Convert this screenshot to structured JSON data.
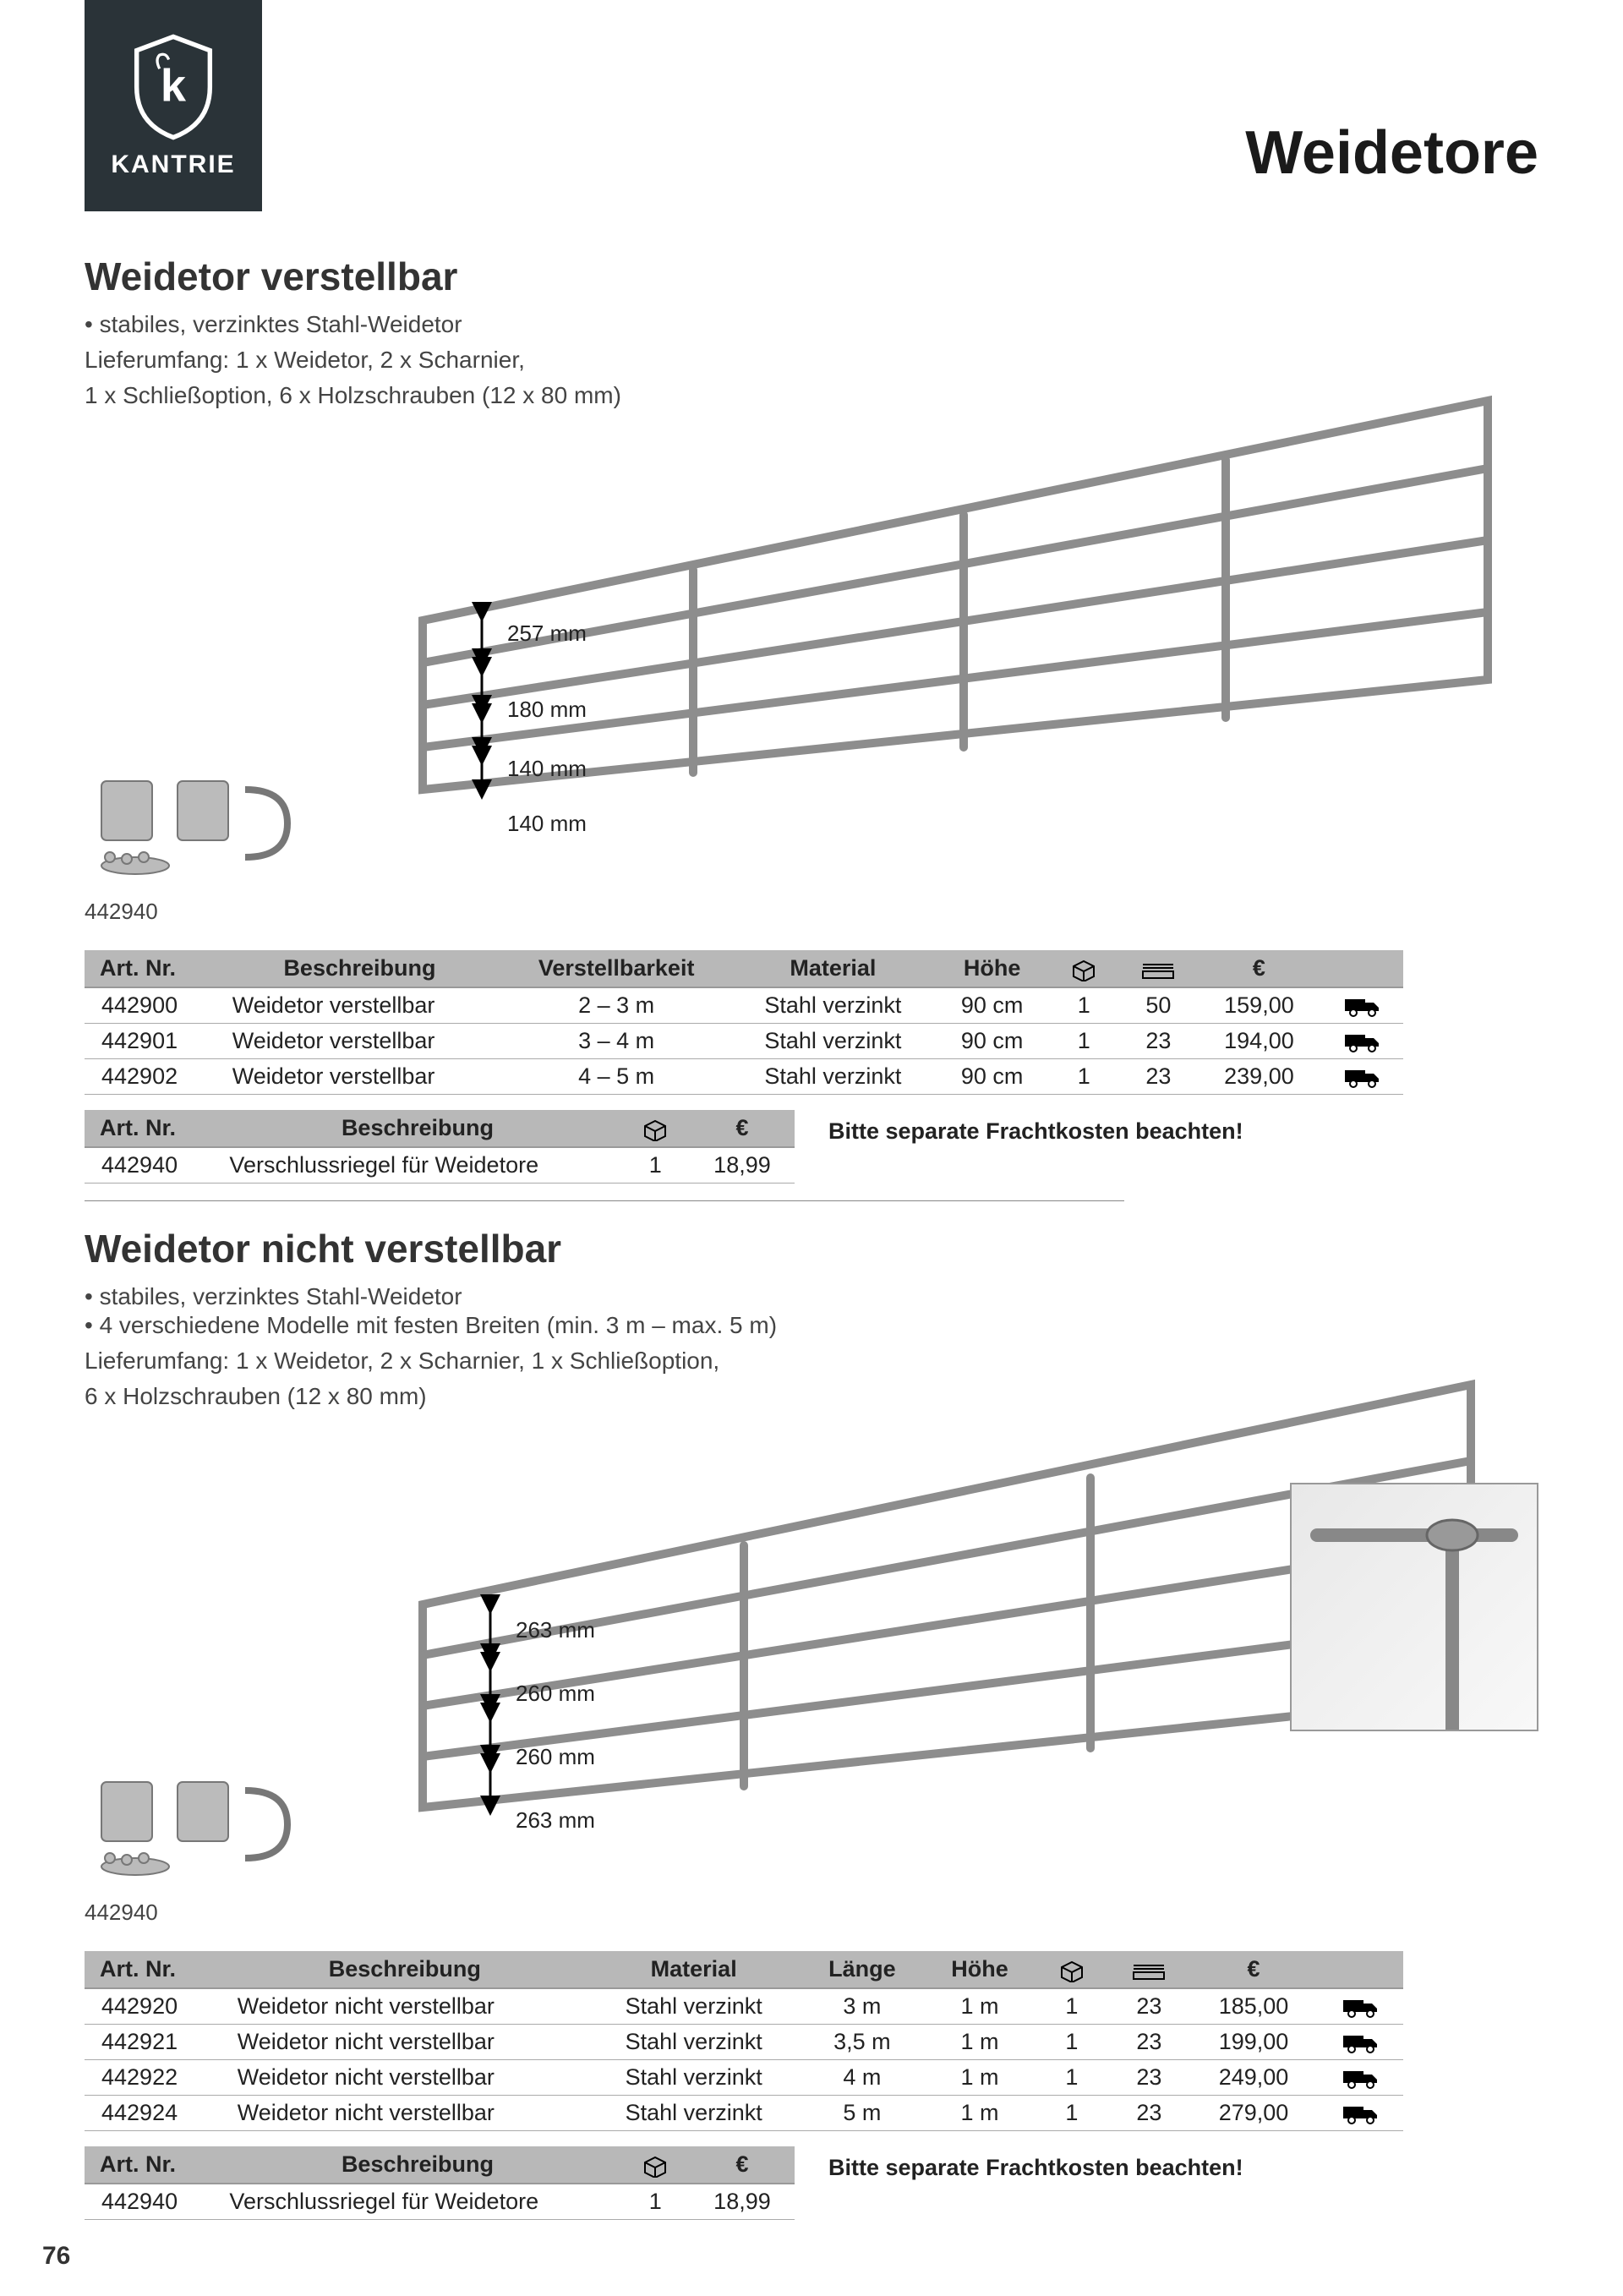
{
  "brand": "KANTRIE",
  "page_title": "Weidetore",
  "page_number": "76",
  "section1": {
    "title": "Weidetor verstellbar",
    "bullet1": "• stabiles, verzinktes Stahl-Weidetor",
    "supply_line1": "Lieferumfang: 1 x Weidetor, 2 x Scharnier,",
    "supply_line2": "1 x Schließoption, 6 x Holzschrauben (12 x 80 mm)",
    "hinge_label": "442940",
    "dims": [
      "257 mm",
      "180 mm",
      "140 mm",
      "140 mm"
    ],
    "table_main": {
      "headers": [
        "Art. Nr.",
        "Beschreibung",
        "Verstellbarkeit",
        "Material",
        "Höhe",
        "ICON_PACK",
        "ICON_PALETTE",
        "€",
        ""
      ],
      "rows": [
        [
          "442900",
          "Weidetor verstellbar",
          "2 – 3 m",
          "Stahl verzinkt",
          "90 cm",
          "1",
          "50",
          "159,00",
          "TRUCK"
        ],
        [
          "442901",
          "Weidetor verstellbar",
          "3 – 4 m",
          "Stahl verzinkt",
          "90 cm",
          "1",
          "23",
          "194,00",
          "TRUCK"
        ],
        [
          "442902",
          "Weidetor verstellbar",
          "4 – 5 m",
          "Stahl verzinkt",
          "90 cm",
          "1",
          "23",
          "239,00",
          "TRUCK"
        ]
      ]
    },
    "table_acc": {
      "headers": [
        "Art. Nr.",
        "Beschreibung",
        "ICON_PACK",
        "€"
      ],
      "rows": [
        [
          "442940",
          "Verschlussriegel für Weidetore",
          "1",
          "18,99"
        ]
      ]
    },
    "freight_note": "Bitte separate Frachtkosten beachten!"
  },
  "section2": {
    "title": "Weidetor nicht verstellbar",
    "bullet1": "• stabiles, verzinktes Stahl-Weidetor",
    "bullet2": "• 4 verschiedene Modelle mit festen Breiten (min. 3 m – max. 5 m)",
    "supply_line1": "Lieferumfang: 1 x Weidetor, 2 x Scharnier, 1 x Schließoption,",
    "supply_line2": "6 x Holzschrauben (12 x 80 mm)",
    "hinge_label": "442940",
    "dims": [
      "263 mm",
      "260 mm",
      "260 mm",
      "263 mm"
    ],
    "table_main": {
      "headers": [
        "Art. Nr.",
        "Beschreibung",
        "Material",
        "Länge",
        "Höhe",
        "ICON_PACK",
        "ICON_PALETTE",
        "€",
        ""
      ],
      "rows": [
        [
          "442920",
          "Weidetor nicht verstellbar",
          "Stahl verzinkt",
          "3 m",
          "1 m",
          "1",
          "23",
          "185,00",
          "TRUCK"
        ],
        [
          "442921",
          "Weidetor nicht verstellbar",
          "Stahl verzinkt",
          "3,5 m",
          "1 m",
          "1",
          "23",
          "199,00",
          "TRUCK"
        ],
        [
          "442922",
          "Weidetor nicht verstellbar",
          "Stahl verzinkt",
          "4 m",
          "1 m",
          "1",
          "23",
          "249,00",
          "TRUCK"
        ],
        [
          "442924",
          "Weidetor nicht verstellbar",
          "Stahl verzinkt",
          "5 m",
          "1 m",
          "1",
          "23",
          "279,00",
          "TRUCK"
        ]
      ]
    },
    "table_acc": {
      "headers": [
        "Art. Nr.",
        "Beschreibung",
        "ICON_PACK",
        "€"
      ],
      "rows": [
        [
          "442940",
          "Verschlussriegel für Weidetore",
          "1",
          "18,99"
        ]
      ]
    },
    "freight_note": "Bitte separate Frachtkosten beachten!"
  },
  "icons": {
    "ICON_PACK": "pack-icon",
    "ICON_PALETTE": "palette-icon",
    "TRUCK": "truck-icon"
  },
  "colors": {
    "header_bg": "#b8b8b8",
    "logo_bg": "#2a3338",
    "gate_stroke": "#9a9a9a"
  }
}
